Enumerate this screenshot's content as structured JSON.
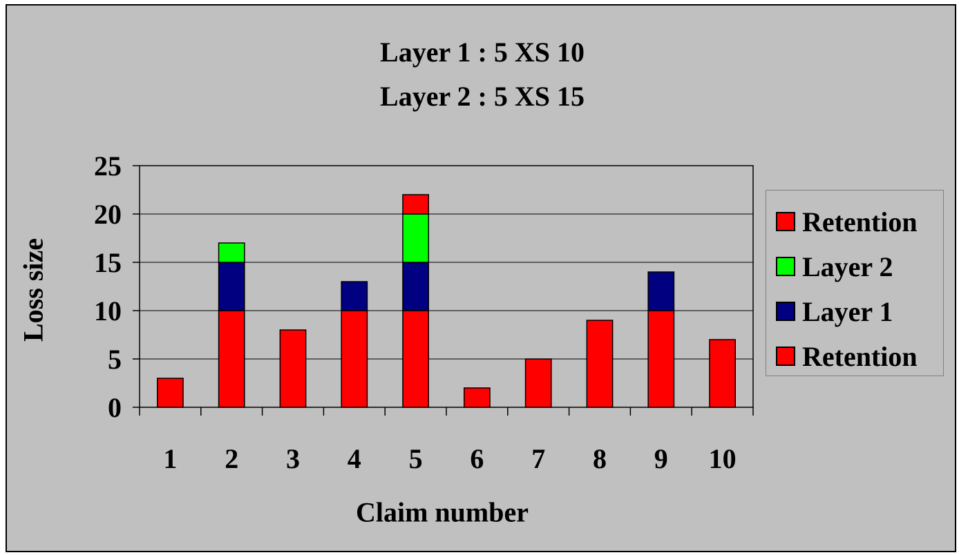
{
  "chart_data": {
    "type": "bar",
    "stacked": true,
    "title": [
      "Layer 1 : 5 XS 10",
      "Layer 2 : 5 XS 15"
    ],
    "xlabel": "Claim number",
    "ylabel": "Loss size",
    "categories": [
      "1",
      "2",
      "3",
      "4",
      "5",
      "6",
      "7",
      "8",
      "9",
      "10"
    ],
    "ylim": [
      0,
      25
    ],
    "yticks": [
      0,
      5,
      10,
      15,
      20,
      25
    ],
    "grid": true,
    "legend_position": "right",
    "series": [
      {
        "name": "Retention",
        "color": "#ff0000",
        "values": [
          3,
          10,
          8,
          10,
          10,
          2,
          5,
          9,
          10,
          7
        ]
      },
      {
        "name": "Layer 1",
        "color": "#000080",
        "values": [
          0,
          5,
          0,
          3,
          5,
          0,
          0,
          0,
          4,
          0
        ]
      },
      {
        "name": "Layer 2",
        "color": "#00ff00",
        "values": [
          0,
          2,
          0,
          0,
          5,
          0,
          0,
          0,
          0,
          0
        ]
      },
      {
        "name": "Retention",
        "color": "#ff0000",
        "values": [
          0,
          0,
          0,
          0,
          2,
          0,
          0,
          0,
          0,
          0
        ]
      }
    ],
    "legend": [
      {
        "label": "Retention",
        "color": "#ff0000"
      },
      {
        "label": "Layer 2",
        "color": "#00ff00"
      },
      {
        "label": "Layer 1",
        "color": "#000080"
      },
      {
        "label": "Retention",
        "color": "#ff0000"
      }
    ]
  }
}
